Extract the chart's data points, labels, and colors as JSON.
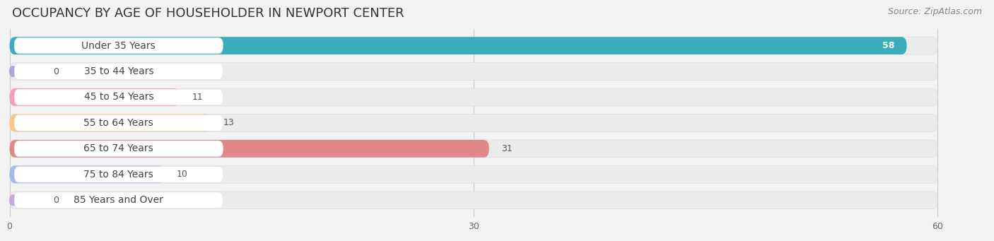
{
  "title": "OCCUPANCY BY AGE OF HOUSEHOLDER IN NEWPORT CENTER",
  "source": "Source: ZipAtlas.com",
  "categories": [
    "Under 35 Years",
    "35 to 44 Years",
    "45 to 54 Years",
    "55 to 64 Years",
    "65 to 74 Years",
    "75 to 84 Years",
    "85 Years and Over"
  ],
  "values": [
    58,
    0,
    11,
    13,
    31,
    10,
    0
  ],
  "bar_colors": [
    "#3AADBA",
    "#AAAAD8",
    "#F4A0B8",
    "#F5C98A",
    "#E08888",
    "#A8B8E8",
    "#C8A8D8"
  ],
  "bar_bg_colors": [
    "#E8E8E8",
    "#E8E8E8",
    "#E8E8E8",
    "#E8E8E8",
    "#E8E8E8",
    "#E8E8E8",
    "#E8E8E8"
  ],
  "xlim": [
    0,
    60
  ],
  "xticks": [
    0,
    30,
    60
  ],
  "title_fontsize": 13,
  "source_fontsize": 9,
  "label_fontsize": 10,
  "value_fontsize": 9,
  "background_color": "#f2f2f2",
  "row_bg": "#f2f2f2",
  "bar_inner_bg": "#EBEBEB"
}
